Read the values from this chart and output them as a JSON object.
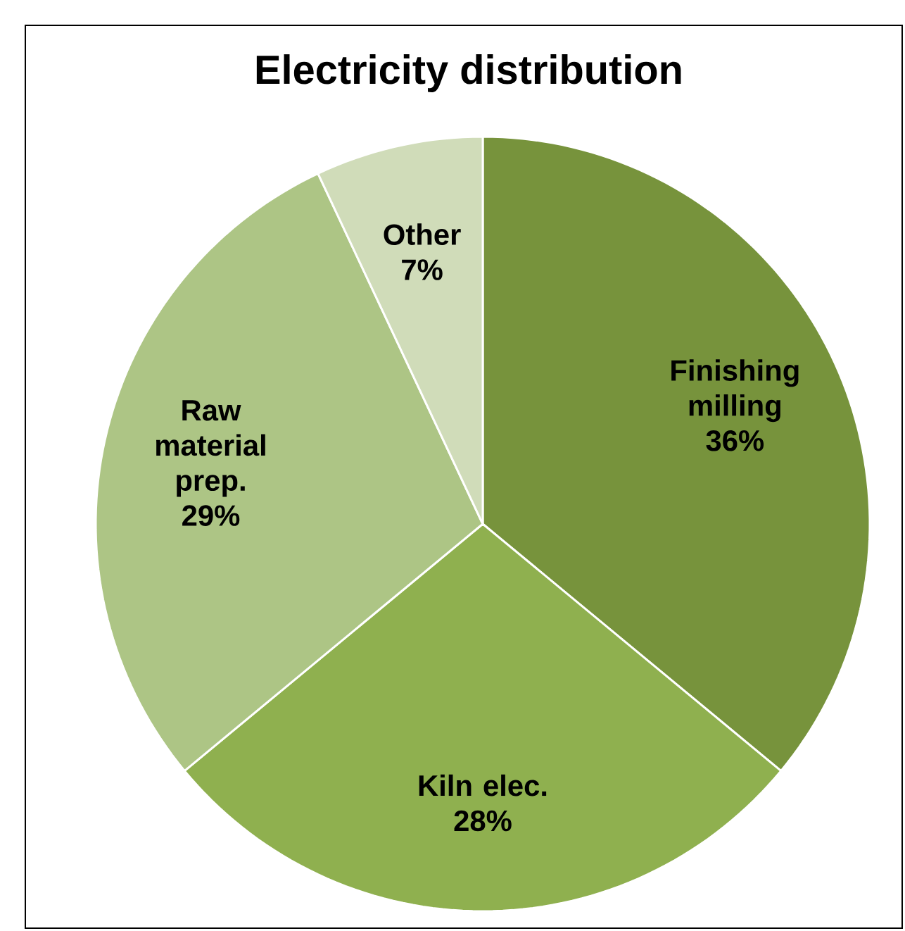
{
  "chart_data": {
    "type": "pie",
    "title": "Electricity distribution",
    "categories": [
      "Finishing milling",
      "Kiln elec.",
      "Raw material prep.",
      "Other"
    ],
    "values": [
      36,
      28,
      29,
      7
    ],
    "value_labels": [
      "36%",
      "28%",
      "29%",
      "7%"
    ],
    "colors": [
      "#77933c",
      "#8fb04f",
      "#adc585",
      "#d0dcb9"
    ]
  }
}
